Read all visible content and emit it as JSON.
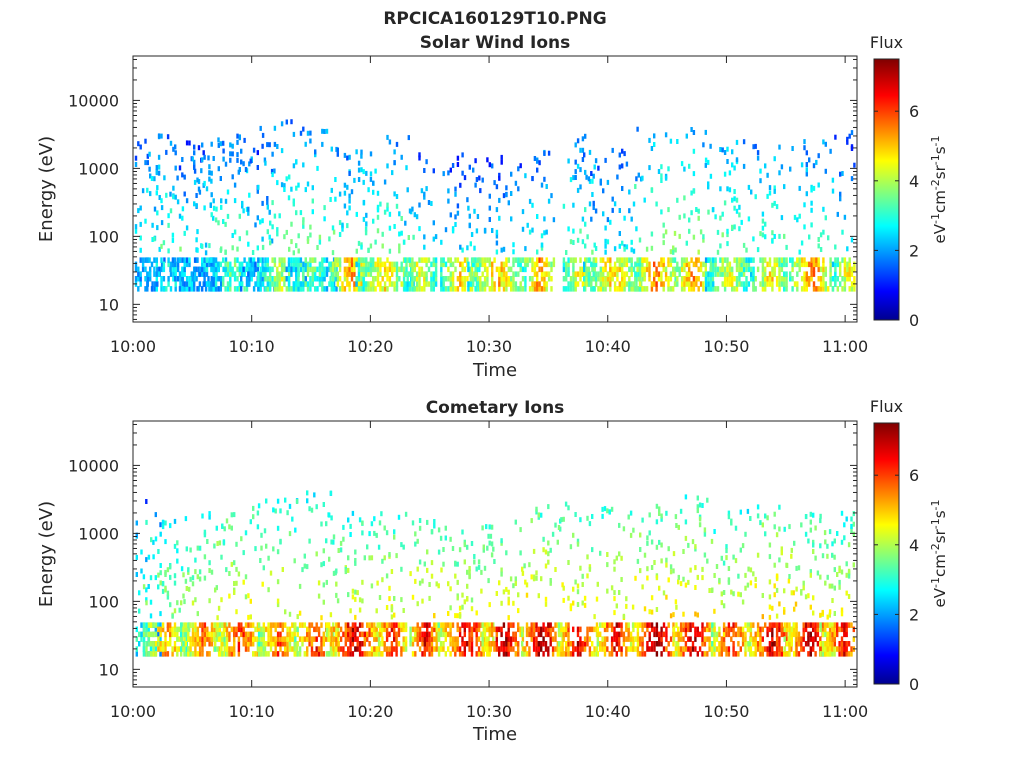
{
  "figure": {
    "title": "RPCICA160129T10.PNG"
  },
  "colorbar": {
    "label": "Flux",
    "ticks": [
      "0",
      "2",
      "4",
      "6"
    ],
    "unit_parts": [
      "eV",
      "-1",
      "cm",
      "-2",
      "sr",
      "-1",
      "s",
      "-1"
    ]
  },
  "chart_data": [
    {
      "type": "heatmap",
      "title": "Solar Wind Ions",
      "xlabel": "Time",
      "ylabel": "Energy (eV)",
      "x_tick_labels": [
        "10:00",
        "10:10",
        "10:20",
        "10:30",
        "10:40",
        "10:50",
        "11:00"
      ],
      "y_tick_labels": [
        "10",
        "100",
        "1000",
        "10000"
      ],
      "yscale": "log",
      "ylim": [
        5.5,
        45000
      ],
      "xlim_minutes": [
        0,
        61
      ],
      "colorscale": "jet",
      "clim": [
        0,
        7.5
      ],
      "bursts": [
        {
          "t": 0.6,
          "low": 2.0,
          "peak": 3.0,
          "top": 3.4
        },
        {
          "t": 2.7,
          "low": 3.0,
          "peak": 3.4,
          "top": 3.5
        },
        {
          "t": 4.8,
          "low": 2.4,
          "peak": 2.8,
          "top": 3.5
        },
        {
          "t": 6.4,
          "low": 2.6,
          "peak": 3.2,
          "top": 3.5
        },
        {
          "t": 8.4,
          "low": 3.6,
          "peak": 3.4,
          "top": 3.5
        },
        {
          "t": 10.4,
          "low": 2.0,
          "peak": 2.8,
          "top": 3.4
        },
        {
          "t": 12.5,
          "low": 4.2,
          "peak": 3.6,
          "top": 3.7
        },
        {
          "t": 15.0,
          "low": 3.6,
          "peak": 3.6,
          "top": 3.6
        },
        {
          "t": 18.4,
          "low": 5.4,
          "peak": 3.2,
          "top": 3.3
        },
        {
          "t": 21.2,
          "low": 4.8,
          "peak": 3.5,
          "top": 3.5
        },
        {
          "t": 24.2,
          "low": 4.6,
          "peak": 2.8,
          "top": 3.3
        },
        {
          "t": 27.5,
          "low": 5.0,
          "peak": 2.6,
          "top": 3.2
        },
        {
          "t": 30.6,
          "low": 5.2,
          "peak": 2.6,
          "top": 3.2
        },
        {
          "t": 34.2,
          "low": 5.6,
          "peak": 3.0,
          "top": 3.3
        },
        {
          "t": 37.6,
          "low": 4.8,
          "peak": 3.4,
          "top": 3.5
        },
        {
          "t": 40.4,
          "low": 5.0,
          "peak": 2.8,
          "top": 3.3
        },
        {
          "t": 44.0,
          "low": 5.6,
          "peak": 3.8,
          "top": 3.6
        },
        {
          "t": 47.2,
          "low": 5.6,
          "peak": 3.8,
          "top": 3.6
        },
        {
          "t": 50.2,
          "low": 4.4,
          "peak": 3.6,
          "top": 3.4
        },
        {
          "t": 53.6,
          "low": 5.0,
          "peak": 3.4,
          "top": 3.4
        },
        {
          "t": 57.2,
          "low": 5.6,
          "peak": 3.4,
          "top": 3.4
        },
        {
          "t": 60.2,
          "low": 4.8,
          "peak": 3.0,
          "top": 3.6
        }
      ]
    },
    {
      "type": "heatmap",
      "title": "Cometary Ions",
      "xlabel": "Time",
      "ylabel": "Energy (eV)",
      "x_tick_labels": [
        "10:00",
        "10:10",
        "10:20",
        "10:30",
        "10:40",
        "10:50",
        "11:00"
      ],
      "y_tick_labels": [
        "10",
        "100",
        "1000",
        "10000"
      ],
      "yscale": "log",
      "ylim": [
        5.5,
        45000
      ],
      "xlim_minutes": [
        0,
        61
      ],
      "colorscale": "jet",
      "clim": [
        0,
        7.5
      ],
      "bursts": [
        {
          "t": 0.5,
          "low": 3.0,
          "peak": 3.2,
          "top": 3.5
        },
        {
          "t": 2.8,
          "low": 5.4,
          "peak": 4.0,
          "top": 3.2
        },
        {
          "t": 5.9,
          "low": 5.8,
          "peak": 4.2,
          "top": 3.3
        },
        {
          "t": 9.0,
          "low": 6.2,
          "peak": 4.6,
          "top": 3.4
        },
        {
          "t": 12.2,
          "low": 6.0,
          "peak": 4.5,
          "top": 3.5
        },
        {
          "t": 15.4,
          "low": 6.4,
          "peak": 4.4,
          "top": 3.6
        },
        {
          "t": 18.6,
          "low": 7.0,
          "peak": 4.4,
          "top": 3.3
        },
        {
          "t": 21.8,
          "low": 6.6,
          "peak": 4.6,
          "top": 3.3
        },
        {
          "t": 24.6,
          "low": 6.8,
          "peak": 4.6,
          "top": 3.2
        },
        {
          "t": 28.0,
          "low": 6.8,
          "peak": 4.4,
          "top": 3.1
        },
        {
          "t": 31.2,
          "low": 7.2,
          "peak": 4.6,
          "top": 3.2
        },
        {
          "t": 34.4,
          "low": 7.4,
          "peak": 4.8,
          "top": 3.4
        },
        {
          "t": 37.4,
          "low": 7.0,
          "peak": 4.6,
          "top": 3.5
        },
        {
          "t": 40.6,
          "low": 6.8,
          "peak": 4.6,
          "top": 3.4
        },
        {
          "t": 44.0,
          "low": 7.4,
          "peak": 4.8,
          "top": 3.5
        },
        {
          "t": 47.2,
          "low": 7.2,
          "peak": 4.8,
          "top": 3.6
        },
        {
          "t": 50.4,
          "low": 6.4,
          "peak": 4.4,
          "top": 3.4
        },
        {
          "t": 53.8,
          "low": 7.0,
          "peak": 4.8,
          "top": 3.4
        },
        {
          "t": 57.0,
          "low": 7.0,
          "peak": 4.6,
          "top": 3.3
        },
        {
          "t": 59.8,
          "low": 6.6,
          "peak": 4.4,
          "top": 3.3
        }
      ]
    }
  ]
}
